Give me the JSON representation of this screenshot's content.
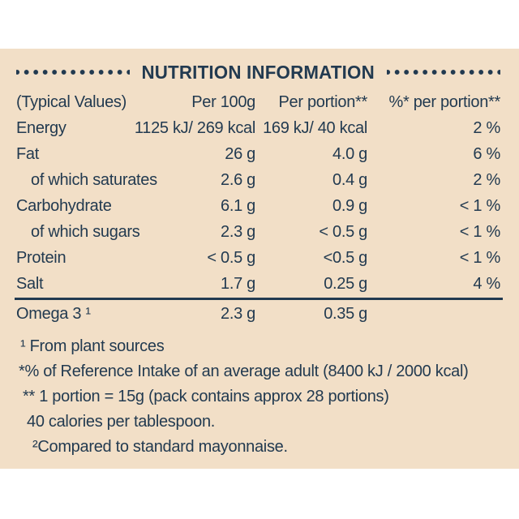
{
  "colors": {
    "panel_bg": "#f2dfc7",
    "ink": "#223a50",
    "page_bg": "#ffffff"
  },
  "header": {
    "title": "NUTRITION INFORMATION"
  },
  "table": {
    "columns": [
      "(Typical Values)",
      "Per 100g",
      "Per portion**",
      "%* per portion**"
    ],
    "rows": [
      {
        "label": "Energy",
        "per_100g": "1125 kJ/ 269 kcal",
        "per_portion": "169 kJ/ 40 kcal",
        "pct_per_portion": "2 %"
      },
      {
        "label": "Fat",
        "per_100g": "26 g",
        "per_portion": "4.0 g",
        "pct_per_portion": "6 %"
      },
      {
        "label": "of which saturates",
        "per_100g": "2.6 g",
        "per_portion": "0.4 g",
        "pct_per_portion": "2 %"
      },
      {
        "label": "Carbohydrate",
        "per_100g": "6.1 g",
        "per_portion": "0.9 g",
        "pct_per_portion": "< 1 %"
      },
      {
        "label": "of which sugars",
        "per_100g": "2.3 g",
        "per_portion": "< 0.5 g",
        "pct_per_portion": "< 1 %"
      },
      {
        "label": "Protein",
        "per_100g": "< 0.5 g",
        "per_portion": "<0.5 g",
        "pct_per_portion": "< 1 %"
      },
      {
        "label": "Salt",
        "per_100g": "1.7 g",
        "per_portion": "0.25 g",
        "pct_per_portion": "4 %"
      }
    ],
    "extra_row": {
      "label": "Omega 3 ¹",
      "per_100g": "2.3 g",
      "per_portion": "0.35 g",
      "pct_per_portion": ""
    }
  },
  "footnotes": [
    "¹ From plant sources",
    "*% of Reference Intake of an average adult (8400 kJ / 2000 kcal)",
    "** 1 portion = 15g (pack contains approx 28 portions)",
    "40 calories per tablespoon.",
    "²Compared to standard mayonnaise."
  ]
}
